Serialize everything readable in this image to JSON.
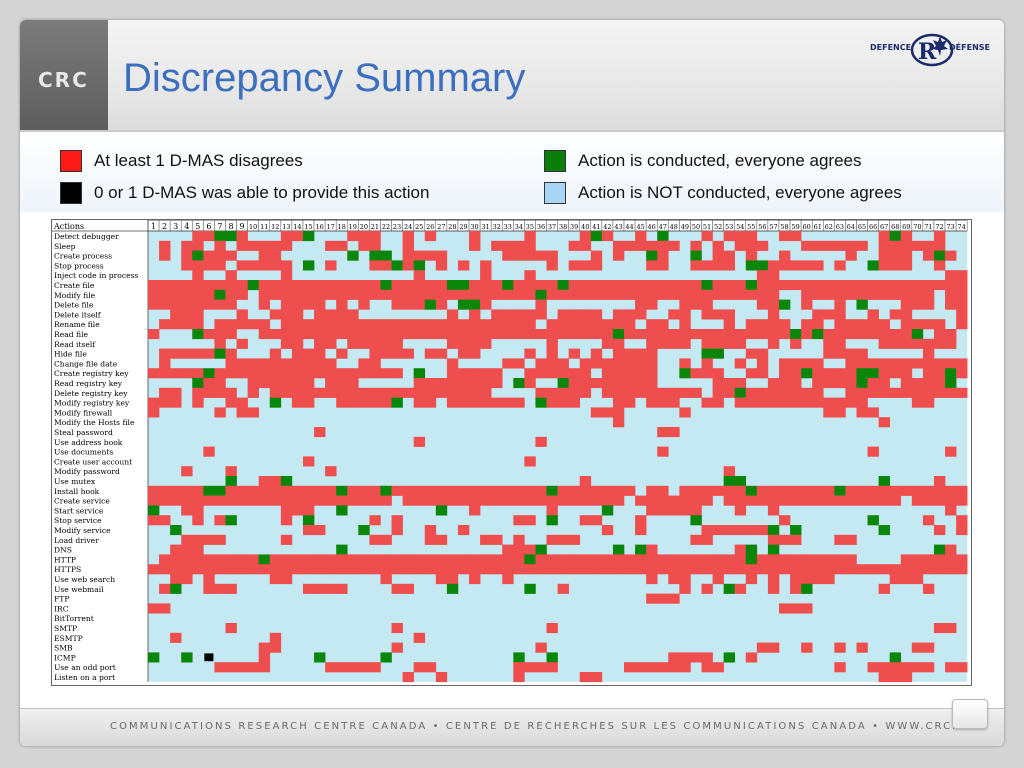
{
  "slide": {
    "title": "Discrepancy Summary",
    "header_logo": "CRC",
    "agency_logo": {
      "left": "DEFENCE",
      "right": "DÉFENSE",
      "icon": "rd-maple-leaf-logo"
    },
    "footer": "COMMUNICATIONS RESEARCH CENTRE CANADA  •  CENTRE DE RECHERCHES SUR LES COMMUNICATIONS CANADA  •  WWW.CRC.CA"
  },
  "legend": [
    {
      "label": "At least 1 D-MAS disagrees",
      "color": "#ff1a1a"
    },
    {
      "label": "0 or 1 D-MAS was able to provide this action",
      "color": "#000000"
    },
    {
      "label": "Action is conducted, everyone agrees",
      "color": "#0a7d0a"
    },
    {
      "label": "Action is NOT conducted, everyone agrees",
      "color": "#a8d4f5"
    }
  ],
  "colors": {
    "disagree": "#ef4e4e",
    "agree_conducted": "#0a870a",
    "agree_not_conducted": "#c5e9f3",
    "unavailable": "#000000"
  },
  "grid": {
    "header_label": "Actions",
    "column_count": 74,
    "actions": [
      "Detect debugger",
      "Sleep",
      "Create process",
      "Stop process",
      "Inject code in process",
      "Create file",
      "Modify file",
      "Delete file",
      "Delete itself",
      "Rename file",
      "Read file",
      "Read itself",
      "Hide file",
      "Change file date",
      "Create registry key",
      "Read registry key",
      "Delete registry key",
      "Modify registry key",
      "Modify firewall",
      "Modify the Hosts file",
      "Steal password",
      "Use address book",
      "Use documents",
      "Create user account",
      "Modify password",
      "Use mutex",
      "Install hook",
      "Create service",
      "Start service",
      "Stop service",
      "Modify service",
      "Load driver",
      "DNS",
      "HTTP",
      "HTTPS",
      "Use web search",
      "Use webmail",
      "FTP",
      "IRC",
      "BitTorrent",
      "SMTP",
      "ESMTP",
      "SMB",
      "ICMP",
      "Use an odd port",
      "Listen on a port"
    ],
    "row_density": [
      0.3,
      0.4,
      0.4,
      0.38,
      0.08,
      0.75,
      0.65,
      0.4,
      0.35,
      0.55,
      0.7,
      0.45,
      0.4,
      0.45,
      0.6,
      0.55,
      0.6,
      0.55,
      0.1,
      0.03,
      0.06,
      0.04,
      0.05,
      0.03,
      0.05,
      0.05,
      0.92,
      0.85,
      0.06,
      0.15,
      0.15,
      0.15,
      0.1,
      0.75,
      0.8,
      0.2,
      0.2,
      0.02,
      0.04,
      0.03,
      0.05,
      0.08,
      0.1,
      0.03,
      0.25,
      0.1
    ],
    "green_rows": [
      0,
      2,
      3,
      5,
      6,
      7,
      10,
      12,
      14,
      15,
      16,
      17,
      25,
      26,
      28,
      29,
      30,
      32,
      33,
      36,
      43
    ]
  }
}
